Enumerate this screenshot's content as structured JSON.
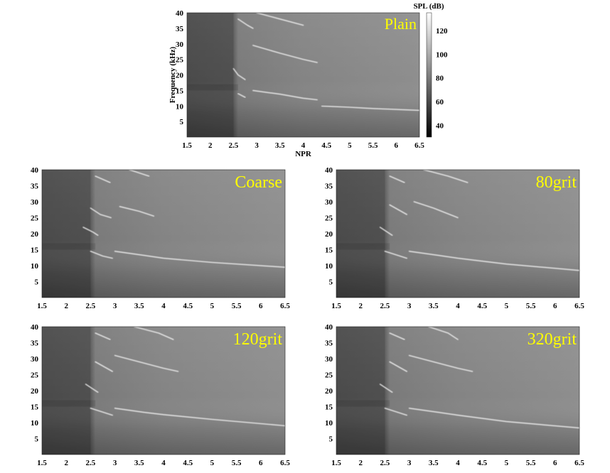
{
  "chart_data": [
    {
      "type": "heatmap",
      "panel_label": "Plain",
      "xlabel": "NPR",
      "ylabel": "Frequency (kHz)",
      "xlim": [
        1.5,
        6.5
      ],
      "ylim": [
        0,
        40
      ],
      "x_ticks": [
        "1.5",
        "2",
        "2.5",
        "3",
        "3.5",
        "4",
        "4.5",
        "5",
        "5.5",
        "6",
        "6.5"
      ],
      "y_ticks": [
        "5",
        "10",
        "15",
        "20",
        "25",
        "30",
        "35",
        "40"
      ],
      "colorbar": {
        "label": "SPL (dB)",
        "range": [
          30,
          135
        ],
        "ticks": [
          "40",
          "60",
          "80",
          "100",
          "120"
        ]
      },
      "tones": [
        {
          "x": [
            2.5,
            2.6,
            2.75
          ],
          "y": [
            22,
            20,
            18.5
          ]
        },
        {
          "x": [
            2.6,
            2.75
          ],
          "y": [
            14,
            12.8
          ]
        },
        {
          "x": [
            2.92,
            3.5,
            4.0,
            4.3
          ],
          "y": [
            15,
            13.8,
            12.5,
            12
          ]
        },
        {
          "x": [
            2.92,
            3.5,
            4.0,
            4.3
          ],
          "y": [
            29.5,
            27,
            25,
            24
          ]
        },
        {
          "x": [
            2.6,
            2.8,
            2.92
          ],
          "y": [
            38,
            36,
            35
          ]
        },
        {
          "x": [
            3.0,
            3.5,
            4.0
          ],
          "y": [
            40,
            38,
            36
          ]
        },
        {
          "x": [
            4.4,
            5.0,
            5.5,
            6.0,
            6.5
          ],
          "y": [
            10,
            9.6,
            9.2,
            8.9,
            8.6
          ]
        }
      ]
    },
    {
      "type": "heatmap",
      "panel_label": "Coarse",
      "xlim": [
        1.5,
        6.5
      ],
      "ylim": [
        0,
        40
      ],
      "x_ticks": [
        "1.5",
        "2",
        "2.5",
        "3",
        "3.5",
        "4",
        "4.5",
        "5",
        "5.5",
        "6",
        "6.5"
      ],
      "y_ticks": [
        "5",
        "10",
        "15",
        "20",
        "25",
        "30",
        "35",
        "40"
      ],
      "tones": [
        {
          "x": [
            2.35,
            2.55,
            2.65
          ],
          "y": [
            22,
            20.5,
            19.5
          ]
        },
        {
          "x": [
            2.5,
            2.75,
            2.95
          ],
          "y": [
            14.5,
            13,
            12.3
          ]
        },
        {
          "x": [
            2.5,
            2.7,
            2.92
          ],
          "y": [
            28,
            26,
            25
          ]
        },
        {
          "x": [
            3.0,
            3.6,
            4.0,
            5.0,
            6.5
          ],
          "y": [
            14.5,
            13.2,
            12.3,
            11,
            9.5
          ]
        },
        {
          "x": [
            3.1,
            3.5,
            3.8
          ],
          "y": [
            28.5,
            27,
            25.5
          ]
        },
        {
          "x": [
            2.6,
            2.9
          ],
          "y": [
            38,
            36
          ]
        },
        {
          "x": [
            3.3,
            3.7
          ],
          "y": [
            40,
            38
          ]
        }
      ]
    },
    {
      "type": "heatmap",
      "panel_label": "80grit",
      "xlim": [
        1.5,
        6.5
      ],
      "ylim": [
        0,
        40
      ],
      "x_ticks": [
        "1.5",
        "2",
        "2.5",
        "3",
        "3.5",
        "4",
        "4.5",
        "5",
        "5.5",
        "6",
        "6.5"
      ],
      "y_ticks": [
        "5",
        "10",
        "15",
        "20",
        "25",
        "30",
        "35",
        "40"
      ],
      "tones": [
        {
          "x": [
            2.4,
            2.65
          ],
          "y": [
            22,
            19.5
          ]
        },
        {
          "x": [
            2.5,
            2.95
          ],
          "y": [
            14.5,
            12.3
          ]
        },
        {
          "x": [
            2.6,
            2.95
          ],
          "y": [
            29,
            26
          ]
        },
        {
          "x": [
            3.0,
            3.6,
            4.0,
            5.0,
            6.5
          ],
          "y": [
            14.5,
            13.2,
            12.3,
            10.5,
            8.5
          ]
        },
        {
          "x": [
            3.1,
            3.5,
            4.0
          ],
          "y": [
            30,
            28,
            25
          ]
        },
        {
          "x": [
            2.6,
            2.9
          ],
          "y": [
            38,
            36
          ]
        },
        {
          "x": [
            3.3,
            3.8,
            4.2
          ],
          "y": [
            40,
            38,
            36
          ]
        }
      ]
    },
    {
      "type": "heatmap",
      "panel_label": "120grit",
      "xlim": [
        1.5,
        6.5
      ],
      "ylim": [
        0,
        40
      ],
      "x_ticks": [
        "1.5",
        "2",
        "2.5",
        "3",
        "3.5",
        "4",
        "4.5",
        "5",
        "5.5",
        "6",
        "6.5"
      ],
      "y_ticks": [
        "5",
        "10",
        "15",
        "20",
        "25",
        "30",
        "35",
        "40"
      ],
      "tones": [
        {
          "x": [
            2.4,
            2.65
          ],
          "y": [
            22,
            19.5
          ]
        },
        {
          "x": [
            2.5,
            2.95
          ],
          "y": [
            14.5,
            12.3
          ]
        },
        {
          "x": [
            2.6,
            2.95
          ],
          "y": [
            29,
            26
          ]
        },
        {
          "x": [
            3.0,
            3.6,
            4.0,
            5.0,
            6.5
          ],
          "y": [
            14.5,
            13.2,
            12.5,
            11,
            9
          ]
        },
        {
          "x": [
            3.0,
            3.5,
            4.0,
            4.3
          ],
          "y": [
            31,
            29,
            27,
            26
          ]
        },
        {
          "x": [
            2.6,
            2.9
          ],
          "y": [
            38,
            36
          ]
        },
        {
          "x": [
            3.4,
            3.9,
            4.2
          ],
          "y": [
            40,
            38,
            36
          ]
        }
      ]
    },
    {
      "type": "heatmap",
      "panel_label": "320grit",
      "xlim": [
        1.5,
        6.5
      ],
      "ylim": [
        0,
        40
      ],
      "x_ticks": [
        "1.5",
        "2",
        "2.5",
        "3",
        "3.5",
        "4",
        "4.5",
        "5",
        "5.5",
        "6",
        "6.5"
      ],
      "y_ticks": [
        "5",
        "10",
        "15",
        "20",
        "25",
        "30",
        "35",
        "40"
      ],
      "tones": [
        {
          "x": [
            2.4,
            2.65
          ],
          "y": [
            22,
            19.5
          ]
        },
        {
          "x": [
            2.5,
            2.95
          ],
          "y": [
            14.5,
            12.3
          ]
        },
        {
          "x": [
            2.6,
            2.95
          ],
          "y": [
            29,
            26
          ]
        },
        {
          "x": [
            3.0,
            3.6,
            4.0,
            5.0,
            6.5
          ],
          "y": [
            14.5,
            13.2,
            12.3,
            10.3,
            8.3
          ]
        },
        {
          "x": [
            3.0,
            3.5,
            4.0,
            4.3
          ],
          "y": [
            31,
            29,
            27,
            26
          ]
        },
        {
          "x": [
            2.6,
            2.9
          ],
          "y": [
            38,
            36
          ]
        },
        {
          "x": [
            3.4,
            3.8,
            4.0
          ],
          "y": [
            40,
            38,
            36
          ]
        }
      ]
    }
  ],
  "colors": {
    "label": "#ffff00",
    "bg_low": "#5a5a5a",
    "bg_high": "#8e8e8e",
    "tone": "#f2f2f2"
  }
}
